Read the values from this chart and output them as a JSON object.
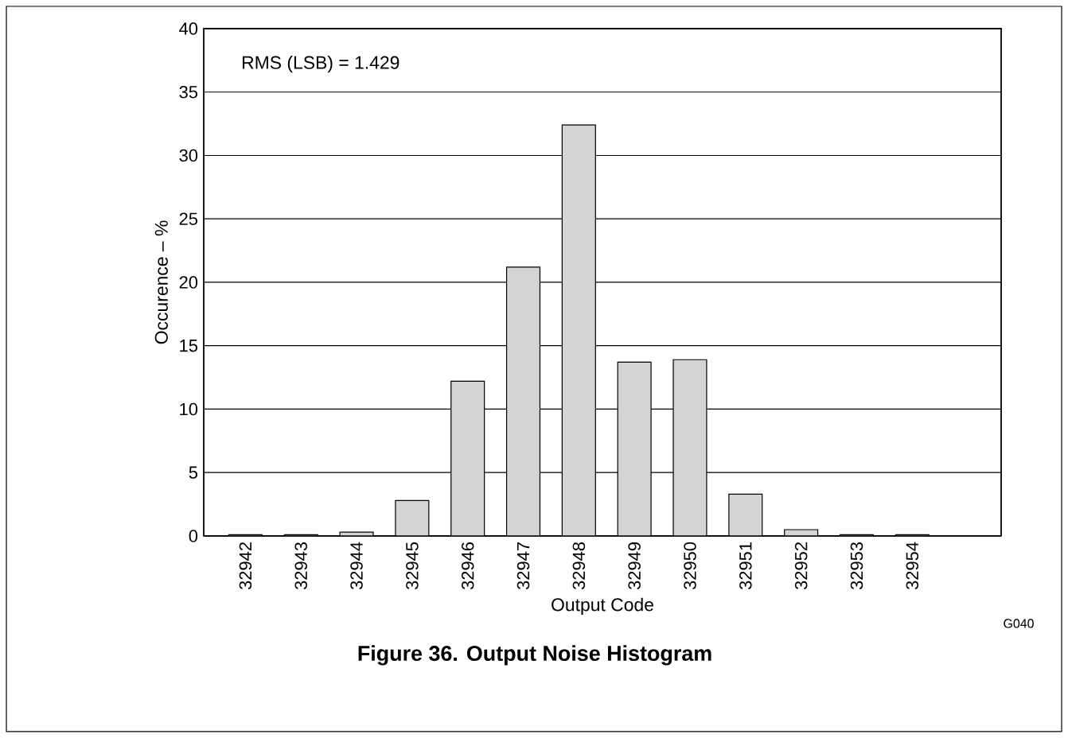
{
  "chart_data": {
    "type": "bar",
    "title": "Figure 36. Output Noise Histogram",
    "xlabel": "Output Code",
    "ylabel": "Occurence – %",
    "categories": [
      "32942",
      "32943",
      "32944",
      "32945",
      "32946",
      "32947",
      "32948",
      "32949",
      "32950",
      "32951",
      "32952",
      "32953",
      "32954"
    ],
    "values": [
      0.1,
      0.1,
      0.3,
      2.8,
      12.2,
      21.2,
      32.4,
      13.7,
      13.9,
      3.3,
      0.5,
      0.1,
      0.1
    ],
    "color": "#d3d4d6",
    "ylim": [
      0,
      40
    ],
    "yticks": [
      0,
      5,
      10,
      15,
      20,
      25,
      30,
      35,
      40
    ],
    "grid": "y",
    "annotations": [
      "RMS (LSB) = 1.429",
      "G040"
    ]
  }
}
